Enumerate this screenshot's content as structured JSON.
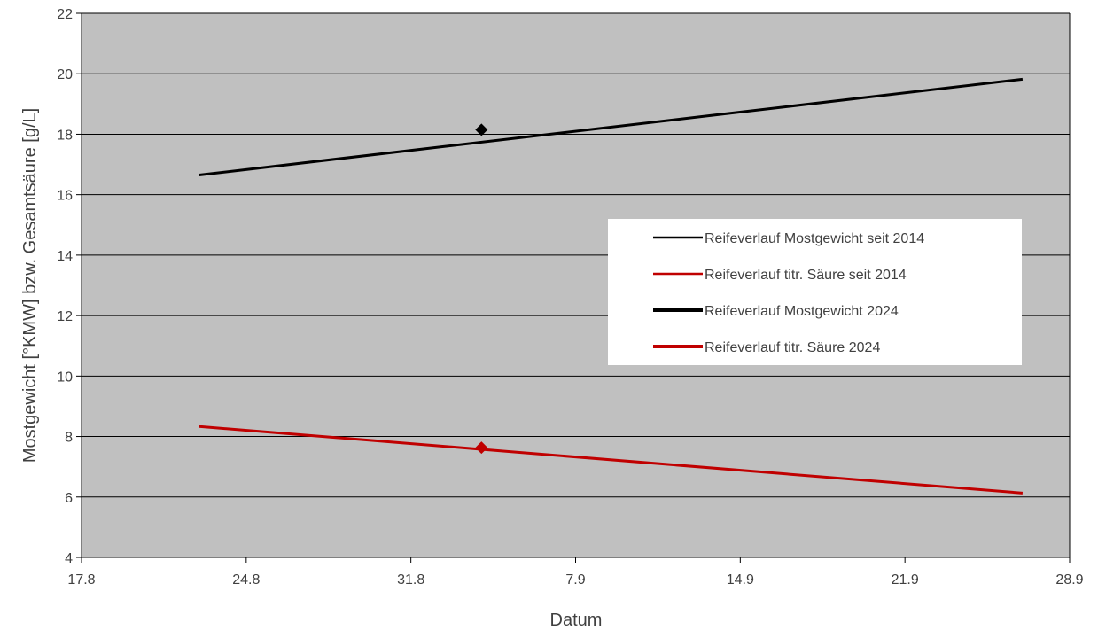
{
  "chart_data": {
    "type": "line",
    "title": "",
    "xlabel": "Datum",
    "ylabel": "Mostgewicht [°KMW] bzw. Gesamtsäure [g/L]",
    "x_tick_labels": [
      "17.8",
      "24.8",
      "31.8",
      "7.9",
      "14.9",
      "21.9",
      "28.9"
    ],
    "x_tick_dates": [
      "2024-08-17",
      "2024-08-24",
      "2024-08-31",
      "2024-09-07",
      "2024-09-14",
      "2024-09-21",
      "2024-09-28"
    ],
    "xlim": [
      "2024-08-17",
      "2024-09-28"
    ],
    "ylim": [
      4,
      22
    ],
    "y_ticks": [
      4,
      6,
      8,
      10,
      12,
      14,
      16,
      18,
      20,
      22
    ],
    "grid": "horizontal",
    "plot_background": "#c0c0c0",
    "legend_position": "right",
    "series": [
      {
        "name": "Reifeverlauf Mostgewicht seit 2014",
        "color": "#000000",
        "kind": "line",
        "points": [
          {
            "x": "2024-08-22",
            "y": 16.65
          },
          {
            "x": "2024-09-26",
            "y": 19.82
          }
        ]
      },
      {
        "name": "Reifeverlauf titr. Säure seit 2014",
        "color": "#c00000",
        "kind": "line",
        "points": [
          {
            "x": "2024-08-22",
            "y": 8.33
          },
          {
            "x": "2024-09-26",
            "y": 6.13
          }
        ]
      },
      {
        "name": "Reifeverlauf Mostgewicht 2024",
        "color": "#000000",
        "kind": "marker",
        "points": [
          {
            "x": "2024-09-03",
            "y": 18.15
          }
        ]
      },
      {
        "name": "Reifeverlauf titr. Säure 2024",
        "color": "#c00000",
        "kind": "marker",
        "points": [
          {
            "x": "2024-09-03",
            "y": 7.63
          }
        ]
      }
    ]
  }
}
